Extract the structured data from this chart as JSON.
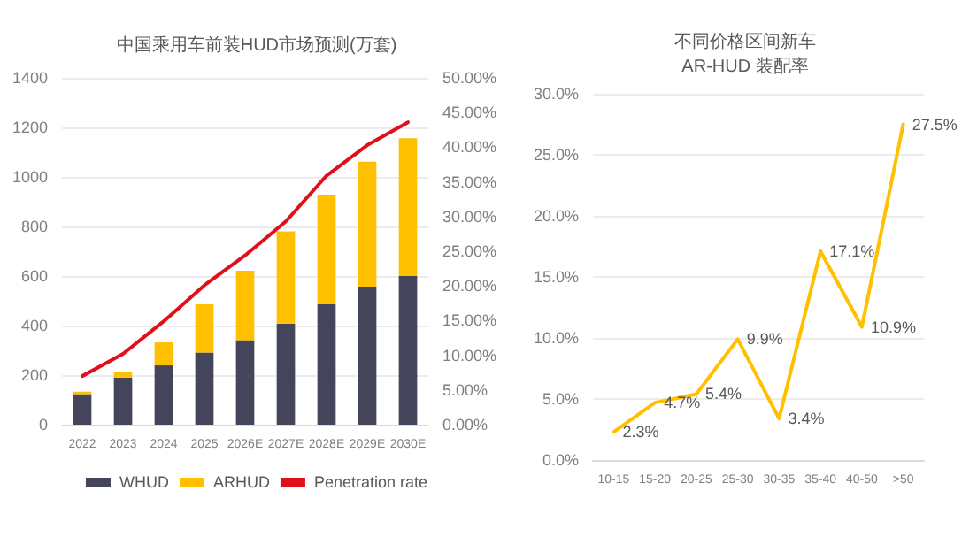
{
  "chart_data": [
    {
      "type": "bar",
      "title": "中国乘用车前装HUD市场预测(万套)",
      "categories": [
        "2022",
        "2023",
        "2024",
        "2025",
        "2026E",
        "2027E",
        "2028E",
        "2029E",
        "2030E"
      ],
      "stacked": true,
      "series": [
        {
          "name": "WHUD",
          "color": "#44445a",
          "values": [
            123,
            190,
            239,
            291,
            341,
            408,
            486,
            557,
            600
          ]
        },
        {
          "name": "ARHUD",
          "color": "#ffc000",
          "values": [
            10,
            23,
            93,
            195,
            280,
            372,
            443,
            505,
            556
          ]
        },
        {
          "name": "Penetration rate",
          "type": "line",
          "axis": "y2",
          "color": "#e0101a",
          "values": [
            7.0,
            10.2,
            14.9,
            20.1,
            24.4,
            29.3,
            35.9,
            40.3,
            43.6
          ]
        }
      ],
      "ylim": [
        0,
        1400
      ],
      "yticks": [
        0,
        200,
        400,
        600,
        800,
        1000,
        1200,
        1400
      ],
      "y2lim": [
        0,
        50
      ],
      "y2ticks": [
        {
          "value": 0,
          "label": "0.00%"
        },
        {
          "value": 5,
          "label": "5.00%"
        },
        {
          "value": 10,
          "label": "10.00%"
        },
        {
          "value": 15,
          "label": "15.00%"
        },
        {
          "value": 20,
          "label": "20.00%"
        },
        {
          "value": 25,
          "label": "25.00%"
        },
        {
          "value": 30,
          "label": "30.00%"
        },
        {
          "value": 35,
          "label": "35.00%"
        },
        {
          "value": 40,
          "label": "40.00%"
        },
        {
          "value": 45,
          "label": "45.00%"
        },
        {
          "value": 50,
          "label": "50.00%"
        }
      ],
      "grid": "y",
      "legend": "bottom",
      "marker": "none"
    },
    {
      "type": "line",
      "title": "不同价格区间新车\nAR-HUD 装配率",
      "categories": [
        "10-15",
        "15-20",
        "20-25",
        "25-30",
        "30-35",
        "35-40",
        "40-50",
        ">50"
      ],
      "series": [
        {
          "color": "#ffc000",
          "values": [
            2.3,
            4.7,
            5.4,
            9.9,
            3.4,
            17.1,
            10.9,
            27.5
          ],
          "value_labels": [
            "2.3%",
            "4.7%",
            "5.4%",
            "9.9%",
            "3.4%",
            "17.1%",
            "10.9%",
            "27.5%"
          ]
        }
      ],
      "ylim": [
        0,
        30
      ],
      "yticks": [
        {
          "value": 0,
          "label": "0.0%"
        },
        {
          "value": 5,
          "label": "5.0%"
        },
        {
          "value": 10,
          "label": "10.0%"
        },
        {
          "value": 15,
          "label": "15.0%"
        },
        {
          "value": 20,
          "label": "20.0%"
        },
        {
          "value": 25,
          "label": "25.0%"
        },
        {
          "value": 30,
          "label": "30.0%"
        }
      ],
      "grid": "y",
      "marker": "none"
    }
  ]
}
